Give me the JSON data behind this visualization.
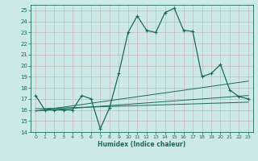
{
  "xlabel": "Humidex (Indice chaleur)",
  "bg_color": "#cce8e8",
  "grid_color": "#b0d4d4",
  "line_color": "#1a6b5a",
  "ylim": [
    14,
    25.5
  ],
  "xlim": [
    -0.5,
    23.5
  ],
  "yticks": [
    14,
    15,
    16,
    17,
    18,
    19,
    20,
    21,
    22,
    23,
    24,
    25
  ],
  "xticks": [
    0,
    1,
    2,
    3,
    4,
    5,
    6,
    7,
    8,
    9,
    10,
    11,
    12,
    13,
    14,
    15,
    16,
    17,
    18,
    19,
    20,
    21,
    22,
    23
  ],
  "main_x": [
    0,
    1,
    2,
    3,
    4,
    5,
    6,
    7,
    8,
    9,
    10,
    11,
    12,
    13,
    14,
    15,
    16,
    17,
    18,
    19,
    20,
    21,
    22,
    23
  ],
  "main_y": [
    17.3,
    16.0,
    16.0,
    16.0,
    16.0,
    17.3,
    17.0,
    14.3,
    16.2,
    19.3,
    23.0,
    24.5,
    23.2,
    23.0,
    24.8,
    25.2,
    23.2,
    23.1,
    19.0,
    19.3,
    20.1,
    17.8,
    17.2,
    17.0
  ],
  "line2_x": [
    0,
    23
  ],
  "line2_y": [
    15.9,
    18.6
  ],
  "line3_x": [
    0,
    23
  ],
  "line3_y": [
    15.9,
    17.3
  ],
  "line4_x": [
    0,
    23
  ],
  "line4_y": [
    16.1,
    16.7
  ]
}
